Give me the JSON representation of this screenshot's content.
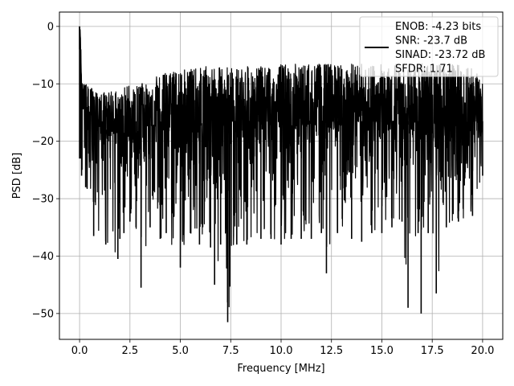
{
  "chart_data": {
    "type": "line",
    "xlabel": "Frequency [MHz]",
    "ylabel": "PSD [dB]",
    "xlim": [
      -1.0,
      21.0
    ],
    "ylim": [
      -54.5,
      2.5
    ],
    "xticks": [
      0.0,
      2.5,
      5.0,
      7.5,
      10.0,
      12.5,
      15.0,
      17.5,
      20.0
    ],
    "xtick_labels": [
      "0.0",
      "2.5",
      "5.0",
      "7.5",
      "10.0",
      "12.5",
      "15.0",
      "17.5",
      "20.0"
    ],
    "yticks": [
      0,
      -10,
      -20,
      -30,
      -40,
      -50
    ],
    "ytick_labels": [
      "0",
      "−10",
      "−20",
      "−30",
      "−40",
      "−50"
    ],
    "grid": true,
    "legend": {
      "placement": "top-right",
      "lines": [
        "ENOB: -4.23 bits",
        "SNR: -23.7 dB",
        "SINAD: -23.72 dB",
        "SFDR: 1.71"
      ]
    },
    "series": [
      {
        "color": "#000000",
        "x": [
          0.0,
          0.05,
          0.1,
          0.3,
          0.7,
          1.3,
          1.9,
          2.0,
          2.2,
          2.5,
          2.8,
          3.05,
          3.5,
          4.0,
          4.3,
          5.0,
          5.5,
          5.95,
          6.5,
          6.7,
          7.0,
          7.35,
          7.8,
          8.3,
          9.0,
          9.5,
          10.0,
          10.5,
          11.0,
          11.5,
          12.0,
          12.25,
          12.8,
          13.5,
          14.0,
          14.5,
          15.0,
          15.5,
          16.0,
          16.3,
          16.8,
          16.95,
          17.3,
          17.7,
          18.2,
          18.8,
          19.5,
          20.0
        ],
        "y_mean": [
          0.0,
          -4.0,
          -11.0,
          -17.0,
          -17.5,
          -18.0,
          -18.5,
          -19.0,
          -18.5,
          -18.0,
          -18.5,
          -18.0,
          -17.0,
          -17.5,
          -17.0,
          -16.5,
          -17.0,
          -17.0,
          -16.5,
          -17.0,
          -17.0,
          -16.5,
          -16.5,
          -16.5,
          -16.5,
          -16.5,
          -16.5,
          -16.5,
          -16.5,
          -16.5,
          -16.5,
          -16.5,
          -16.5,
          -16.5,
          -16.5,
          -16.5,
          -16.5,
          -16.5,
          -16.5,
          -16.5,
          -16.5,
          -16.5,
          -16.5,
          -16.5,
          -16.5,
          -16.5,
          -16.5,
          -16.5
        ],
        "y_max": [
          0.0,
          -1.0,
          -9.5,
          -10.0,
          -11.0,
          -11.5,
          -11.0,
          -11.5,
          -10.5,
          -10.0,
          -10.5,
          -10.0,
          -9.0,
          -8.5,
          -8.0,
          -7.5,
          -7.5,
          -7.0,
          -7.0,
          -7.5,
          -7.0,
          -7.0,
          -7.0,
          -7.0,
          -7.0,
          -7.0,
          -6.5,
          -6.5,
          -6.5,
          -6.5,
          -6.5,
          -6.5,
          -6.5,
          -6.5,
          -6.5,
          -6.5,
          -6.5,
          -6.0,
          -6.5,
          -6.5,
          -6.5,
          -6.5,
          -6.5,
          -6.5,
          -6.5,
          -6.5,
          -6.5,
          -9.5
        ],
        "y_min": [
          -4.0,
          -23.0,
          -26.0,
          -28.0,
          -36.5,
          -38.0,
          -40.5,
          -37.0,
          -36.0,
          -34.0,
          -35.0,
          -45.5,
          -35.0,
          -37.0,
          -36.0,
          -42.0,
          -36.0,
          -38.0,
          -38.5,
          -45.0,
          -38.0,
          -51.5,
          -38.0,
          -38.0,
          -37.0,
          -37.0,
          -38.0,
          -37.0,
          -37.0,
          -37.0,
          -36.0,
          -43.0,
          -36.0,
          -37.0,
          -37.5,
          -36.0,
          -36.0,
          -35.0,
          -34.0,
          -49.0,
          -36.0,
          -50.0,
          -36.0,
          -46.5,
          -35.0,
          -34.0,
          -33.0,
          -26.0
        ]
      }
    ]
  }
}
